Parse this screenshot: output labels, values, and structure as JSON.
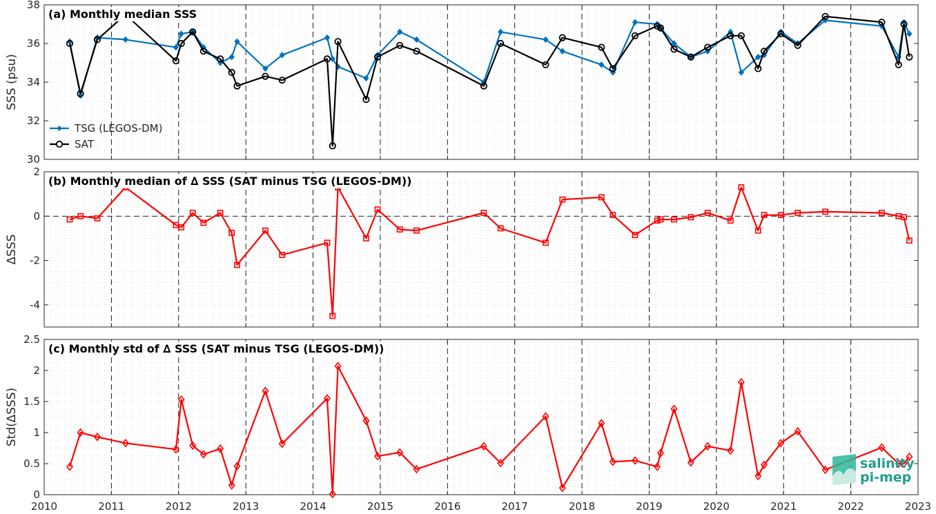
{
  "x_tick_labels": [
    "2010",
    "2011",
    "2012",
    "2013",
    "2014",
    "2015",
    "2016",
    "2017",
    "2018",
    "2019",
    "2020",
    "2021",
    "2022",
    "2023"
  ],
  "logo": {
    "line1": "salinity",
    "line2": "pi-mep"
  },
  "colors": {
    "tsg": "#0072bd",
    "sat": "#000000",
    "delta": "#ff0000",
    "grid": "#c8c8c8",
    "vline": "#000000"
  },
  "chart_data": [
    {
      "type": "line",
      "title": "(a) Monthly median SSS",
      "xlabel": "",
      "ylabel": "SSS (psu)",
      "xlim": [
        2010,
        2023
      ],
      "ylim": [
        30,
        38
      ],
      "yticks": [
        30,
        32,
        34,
        36,
        38
      ],
      "yticklabels": [
        "30",
        "32",
        "34",
        "36",
        "38"
      ],
      "legend": "bottom-left",
      "series": [
        {
          "name": "TSG (LEGOS-DM)",
          "marker": "filled-diamond",
          "color": "#0072bd",
          "x": [
            2010.38,
            2010.54,
            2010.79,
            2011.21,
            2011.96,
            2012.04,
            2012.21,
            2012.37,
            2012.62,
            2012.79,
            2012.87,
            2013.29,
            2013.54,
            2014.21,
            2014.29,
            2014.37,
            2014.79,
            2014.96,
            2015.29,
            2015.54,
            2016.54,
            2016.79,
            2017.46,
            2017.71,
            2018.29,
            2018.46,
            2018.79,
            2019.12,
            2019.17,
            2019.37,
            2019.62,
            2019.87,
            2020.21,
            2020.37,
            2020.62,
            2020.71,
            2020.96,
            2021.21,
            2021.62,
            2022.46,
            2022.71,
            2022.79,
            2022.87
          ],
          "y": [
            36.1,
            33.3,
            36.3,
            36.2,
            35.8,
            36.5,
            36.6,
            35.8,
            35.0,
            35.3,
            36.1,
            34.7,
            35.4,
            36.3,
            35.2,
            34.8,
            34.2,
            35.4,
            36.6,
            36.2,
            34.0,
            36.6,
            36.2,
            35.6,
            34.9,
            34.5,
            37.1,
            37.0,
            36.8,
            36.0,
            35.3,
            35.6,
            36.6,
            34.5,
            35.3,
            35.4,
            36.6,
            36.0,
            37.2,
            36.9,
            35.3,
            37.1,
            36.5
          ]
        },
        {
          "name": "SAT",
          "marker": "open-circle",
          "color": "#000000",
          "x": [
            2010.38,
            2010.54,
            2010.79,
            2011.21,
            2011.96,
            2012.04,
            2012.21,
            2012.37,
            2012.62,
            2012.79,
            2012.87,
            2013.29,
            2013.54,
            2014.21,
            2014.29,
            2014.37,
            2014.79,
            2014.96,
            2015.29,
            2015.54,
            2016.54,
            2016.79,
            2017.46,
            2017.71,
            2018.29,
            2018.46,
            2018.79,
            2019.12,
            2019.17,
            2019.37,
            2019.62,
            2019.87,
            2020.21,
            2020.37,
            2020.62,
            2020.71,
            2020.96,
            2021.21,
            2021.62,
            2022.46,
            2022.71,
            2022.79,
            2022.87
          ],
          "y": [
            36.0,
            33.4,
            36.2,
            37.5,
            35.1,
            36.0,
            36.6,
            35.6,
            35.2,
            34.5,
            33.8,
            34.3,
            34.1,
            35.2,
            30.7,
            36.1,
            33.1,
            35.3,
            35.9,
            35.6,
            33.8,
            36.0,
            34.9,
            36.3,
            35.8,
            34.7,
            36.4,
            36.9,
            36.8,
            35.7,
            35.3,
            35.8,
            36.4,
            36.4,
            34.7,
            35.6,
            36.5,
            35.9,
            37.4,
            37.1,
            34.9,
            37.0,
            35.3
          ]
        }
      ]
    },
    {
      "type": "line",
      "title": "(b) Monthly median of ∆ SSS (SAT minus TSG (LEGOS-DM))",
      "xlabel": "",
      "ylabel": "∆SSS",
      "xlim": [
        2010,
        2023
      ],
      "ylim": [
        -5,
        2
      ],
      "yticks": [
        -4,
        -2,
        0,
        2
      ],
      "yticklabels": [
        "-4",
        "-2",
        "0",
        "2"
      ],
      "zero_line": true,
      "series": [
        {
          "name": "",
          "marker": "open-square",
          "color": "#ff0000",
          "x": [
            2010.38,
            2010.54,
            2010.79,
            2011.21,
            2011.96,
            2012.04,
            2012.21,
            2012.37,
            2012.62,
            2012.79,
            2012.87,
            2013.29,
            2013.54,
            2014.21,
            2014.29,
            2014.37,
            2014.79,
            2014.96,
            2015.29,
            2015.54,
            2016.54,
            2016.79,
            2017.46,
            2017.71,
            2018.29,
            2018.46,
            2018.79,
            2019.12,
            2019.17,
            2019.37,
            2019.62,
            2019.87,
            2020.21,
            2020.37,
            2020.62,
            2020.71,
            2020.96,
            2021.21,
            2021.62,
            2022.46,
            2022.71,
            2022.79,
            2022.87
          ],
          "y": [
            -0.15,
            0.0,
            -0.1,
            1.3,
            -0.4,
            -0.5,
            0.15,
            -0.3,
            0.15,
            -0.75,
            -2.2,
            -0.65,
            -1.75,
            -1.2,
            -4.5,
            1.3,
            -1.0,
            0.3,
            -0.6,
            -0.65,
            0.15,
            -0.55,
            -1.2,
            0.75,
            0.85,
            0.05,
            -0.85,
            -0.2,
            -0.15,
            -0.15,
            -0.05,
            0.15,
            -0.2,
            1.3,
            -0.65,
            0.05,
            0.05,
            0.15,
            0.2,
            0.15,
            0.0,
            -0.05,
            -1.1
          ]
        }
      ]
    },
    {
      "type": "line",
      "title": "(c) Monthly std of ∆ SSS (SAT minus TSG (LEGOS-DM))",
      "xlabel": "",
      "ylabel": "Std(∆SSS)",
      "xlim": [
        2010,
        2023
      ],
      "ylim": [
        0,
        2.5
      ],
      "yticks": [
        0,
        0.5,
        1,
        1.5,
        2,
        2.5
      ],
      "yticklabels": [
        "0",
        "0.5",
        "1",
        "1.5",
        "2",
        "2.5"
      ],
      "series": [
        {
          "name": "",
          "marker": "open-diamond",
          "color": "#ff0000",
          "x": [
            2010.38,
            2010.54,
            2010.79,
            2011.21,
            2011.96,
            2012.04,
            2012.21,
            2012.37,
            2012.62,
            2012.79,
            2012.87,
            2013.29,
            2013.54,
            2014.21,
            2014.29,
            2014.37,
            2014.79,
            2014.96,
            2015.29,
            2015.54,
            2016.54,
            2016.79,
            2017.46,
            2017.71,
            2018.29,
            2018.46,
            2018.79,
            2019.12,
            2019.17,
            2019.37,
            2019.62,
            2019.87,
            2020.21,
            2020.37,
            2020.62,
            2020.71,
            2020.96,
            2021.21,
            2021.62,
            2022.46,
            2022.71,
            2022.79,
            2022.87
          ],
          "y": [
            0.45,
            1.0,
            0.93,
            0.83,
            0.73,
            1.53,
            0.79,
            0.65,
            0.74,
            0.15,
            0.46,
            1.67,
            0.82,
            1.55,
            0.01,
            2.07,
            1.19,
            0.62,
            0.68,
            0.41,
            0.78,
            0.51,
            1.26,
            0.11,
            1.15,
            0.53,
            0.55,
            0.45,
            0.67,
            1.38,
            0.52,
            0.78,
            0.71,
            1.81,
            0.3,
            0.48,
            0.83,
            1.02,
            0.4,
            0.76,
            0.5,
            0.5,
            0.61
          ]
        }
      ]
    }
  ]
}
